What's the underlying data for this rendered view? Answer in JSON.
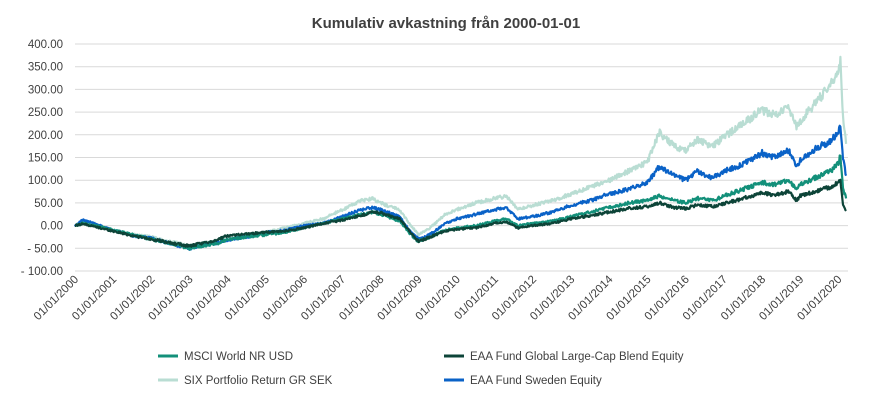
{
  "chart_data": {
    "type": "line",
    "title": "Kumulativ avkastning från 2000-01-01",
    "xlabel": "",
    "ylabel": "",
    "ylim": [
      -100,
      400
    ],
    "yticks": [
      {
        "value": 400,
        "label": "400.00"
      },
      {
        "value": 350,
        "label": "350.00"
      },
      {
        "value": 300,
        "label": "300.00"
      },
      {
        "value": 250,
        "label": "250.00"
      },
      {
        "value": 200,
        "label": "200.00"
      },
      {
        "value": 150,
        "label": "150.00"
      },
      {
        "value": 100,
        "label": "100.00"
      },
      {
        "value": 50,
        "label": "50.00"
      },
      {
        "value": 0,
        "label": "0.00"
      },
      {
        "value": -50,
        "label": "- 50.00"
      },
      {
        "value": -100,
        "label": "- 100.00"
      }
    ],
    "xlim": [
      2000,
      2020.25
    ],
    "xticks": [
      {
        "value": 2000,
        "label": "01/01/2000"
      },
      {
        "value": 2001,
        "label": "01/01/2001"
      },
      {
        "value": 2002,
        "label": "01/01/2002"
      },
      {
        "value": 2003,
        "label": "01/01/2003"
      },
      {
        "value": 2004,
        "label": "01/01/2004"
      },
      {
        "value": 2005,
        "label": "01/01/2005"
      },
      {
        "value": 2006,
        "label": "01/01/2006"
      },
      {
        "value": 2007,
        "label": "01/01/2007"
      },
      {
        "value": 2008,
        "label": "01/01/2008"
      },
      {
        "value": 2009,
        "label": "01/01/2009"
      },
      {
        "value": 2010,
        "label": "01/01/2010"
      },
      {
        "value": 2011,
        "label": "01/01/2011"
      },
      {
        "value": 2012,
        "label": "01/01/2012"
      },
      {
        "value": 2013,
        "label": "01/01/2013"
      },
      {
        "value": 2014,
        "label": "01/01/2014"
      },
      {
        "value": 2015,
        "label": "01/01/2015"
      },
      {
        "value": 2016,
        "label": "01/01/2016"
      },
      {
        "value": 2017,
        "label": "01/01/2017"
      },
      {
        "value": 2018,
        "label": "01/01/2018"
      },
      {
        "value": 2019,
        "label": "01/01/2019"
      },
      {
        "value": 2020,
        "label": "01/01/2020"
      }
    ],
    "grid": "horizontal",
    "legend_position": "bottom",
    "series": [
      {
        "name": "SIX Portfolio Return GR SEK",
        "color": "#b9ddd3",
        "points": [
          [
            2000,
            0
          ],
          [
            2000.2,
            10
          ],
          [
            2000.5,
            5
          ],
          [
            2000.8,
            -5
          ],
          [
            2001,
            -10
          ],
          [
            2001.5,
            -20
          ],
          [
            2002,
            -25
          ],
          [
            2002.5,
            -35
          ],
          [
            2003,
            -45
          ],
          [
            2003.3,
            -40
          ],
          [
            2003.7,
            -35
          ],
          [
            2004,
            -30
          ],
          [
            2004.5,
            -25
          ],
          [
            2005,
            -15
          ],
          [
            2005.5,
            -5
          ],
          [
            2006,
            5
          ],
          [
            2006.5,
            15
          ],
          [
            2007,
            35
          ],
          [
            2007.5,
            55
          ],
          [
            2007.8,
            60
          ],
          [
            2008,
            50
          ],
          [
            2008.5,
            35
          ],
          [
            2008.8,
            0
          ],
          [
            2009,
            -20
          ],
          [
            2009.3,
            -5
          ],
          [
            2009.7,
            25
          ],
          [
            2010,
            35
          ],
          [
            2010.5,
            50
          ],
          [
            2011,
            60
          ],
          [
            2011.3,
            65
          ],
          [
            2011.6,
            35
          ],
          [
            2012,
            45
          ],
          [
            2012.5,
            55
          ],
          [
            2013,
            70
          ],
          [
            2013.5,
            85
          ],
          [
            2014,
            100
          ],
          [
            2014.5,
            120
          ],
          [
            2015,
            140
          ],
          [
            2015.3,
            205
          ],
          [
            2015.7,
            175
          ],
          [
            2016,
            165
          ],
          [
            2016.3,
            190
          ],
          [
            2016.7,
            175
          ],
          [
            2017,
            195
          ],
          [
            2017.5,
            225
          ],
          [
            2018,
            255
          ],
          [
            2018.3,
            245
          ],
          [
            2018.7,
            260
          ],
          [
            2018.9,
            215
          ],
          [
            2019,
            230
          ],
          [
            2019.5,
            280
          ],
          [
            2019.8,
            310
          ],
          [
            2020,
            345
          ],
          [
            2020.05,
            360
          ],
          [
            2020.12,
            240
          ],
          [
            2020.2,
            180
          ]
        ]
      },
      {
        "name": "EAA Fund Sweden Equity",
        "color": "#0a62c7",
        "points": [
          [
            2000,
            0
          ],
          [
            2000.2,
            12
          ],
          [
            2000.5,
            5
          ],
          [
            2000.8,
            -5
          ],
          [
            2001,
            -10
          ],
          [
            2001.5,
            -22
          ],
          [
            2002,
            -28
          ],
          [
            2002.5,
            -40
          ],
          [
            2003,
            -50
          ],
          [
            2003.3,
            -45
          ],
          [
            2003.7,
            -38
          ],
          [
            2004,
            -32
          ],
          [
            2004.5,
            -25
          ],
          [
            2005,
            -15
          ],
          [
            2005.5,
            -10
          ],
          [
            2006,
            0
          ],
          [
            2006.5,
            5
          ],
          [
            2007,
            20
          ],
          [
            2007.5,
            35
          ],
          [
            2007.8,
            40
          ],
          [
            2008,
            35
          ],
          [
            2008.5,
            20
          ],
          [
            2008.8,
            -15
          ],
          [
            2009,
            -30
          ],
          [
            2009.3,
            -20
          ],
          [
            2009.7,
            5
          ],
          [
            2010,
            15
          ],
          [
            2010.5,
            25
          ],
          [
            2011,
            35
          ],
          [
            2011.3,
            40
          ],
          [
            2011.6,
            15
          ],
          [
            2012,
            20
          ],
          [
            2012.5,
            30
          ],
          [
            2013,
            45
          ],
          [
            2013.5,
            55
          ],
          [
            2014,
            70
          ],
          [
            2014.5,
            80
          ],
          [
            2015,
            95
          ],
          [
            2015.3,
            130
          ],
          [
            2015.7,
            110
          ],
          [
            2016,
            100
          ],
          [
            2016.3,
            120
          ],
          [
            2016.7,
            105
          ],
          [
            2017,
            120
          ],
          [
            2017.5,
            135
          ],
          [
            2018,
            160
          ],
          [
            2018.3,
            150
          ],
          [
            2018.7,
            165
          ],
          [
            2018.9,
            130
          ],
          [
            2019,
            145
          ],
          [
            2019.5,
            175
          ],
          [
            2019.8,
            185
          ],
          [
            2020,
            210
          ],
          [
            2020.05,
            222
          ],
          [
            2020.12,
            150
          ],
          [
            2020.2,
            110
          ]
        ]
      },
      {
        "name": "MSCI World NR USD",
        "color": "#13907a",
        "points": [
          [
            2000,
            0
          ],
          [
            2000.2,
            5
          ],
          [
            2000.5,
            0
          ],
          [
            2000.8,
            -5
          ],
          [
            2001,
            -10
          ],
          [
            2001.5,
            -20
          ],
          [
            2002,
            -30
          ],
          [
            2002.5,
            -40
          ],
          [
            2003,
            -50
          ],
          [
            2003.3,
            -45
          ],
          [
            2003.7,
            -40
          ],
          [
            2004,
            -30
          ],
          [
            2004.5,
            -25
          ],
          [
            2005,
            -20
          ],
          [
            2005.5,
            -15
          ],
          [
            2006,
            -5
          ],
          [
            2006.5,
            5
          ],
          [
            2007,
            15
          ],
          [
            2007.5,
            25
          ],
          [
            2007.8,
            30
          ],
          [
            2008,
            25
          ],
          [
            2008.5,
            10
          ],
          [
            2008.8,
            -20
          ],
          [
            2009,
            -35
          ],
          [
            2009.3,
            -25
          ],
          [
            2009.7,
            -10
          ],
          [
            2010,
            -5
          ],
          [
            2010.5,
            0
          ],
          [
            2011,
            10
          ],
          [
            2011.3,
            15
          ],
          [
            2011.6,
            0
          ],
          [
            2012,
            5
          ],
          [
            2012.5,
            10
          ],
          [
            2013,
            20
          ],
          [
            2013.5,
            30
          ],
          [
            2014,
            40
          ],
          [
            2014.5,
            50
          ],
          [
            2015,
            55
          ],
          [
            2015.3,
            65
          ],
          [
            2015.7,
            55
          ],
          [
            2016,
            50
          ],
          [
            2016.3,
            60
          ],
          [
            2016.7,
            55
          ],
          [
            2017,
            65
          ],
          [
            2017.5,
            80
          ],
          [
            2018,
            95
          ],
          [
            2018.3,
            90
          ],
          [
            2018.7,
            100
          ],
          [
            2018.9,
            80
          ],
          [
            2019,
            90
          ],
          [
            2019.5,
            110
          ],
          [
            2019.8,
            120
          ],
          [
            2020,
            140
          ],
          [
            2020.05,
            152
          ],
          [
            2020.12,
            80
          ],
          [
            2020.2,
            60
          ]
        ]
      },
      {
        "name": "EAA Fund Global Large-Cap Blend Equity",
        "color": "#0d4438",
        "points": [
          [
            2000,
            0
          ],
          [
            2000.2,
            4
          ],
          [
            2000.5,
            -2
          ],
          [
            2000.8,
            -8
          ],
          [
            2001,
            -12
          ],
          [
            2001.5,
            -22
          ],
          [
            2002,
            -30
          ],
          [
            2002.5,
            -38
          ],
          [
            2003,
            -45
          ],
          [
            2003.3,
            -40
          ],
          [
            2003.7,
            -32
          ],
          [
            2004,
            -22
          ],
          [
            2004.5,
            -18
          ],
          [
            2005,
            -15
          ],
          [
            2005.5,
            -12
          ],
          [
            2006,
            -5
          ],
          [
            2006.5,
            5
          ],
          [
            2007,
            12
          ],
          [
            2007.5,
            22
          ],
          [
            2007.8,
            30
          ],
          [
            2008,
            28
          ],
          [
            2008.5,
            15
          ],
          [
            2008.8,
            -15
          ],
          [
            2009,
            -35
          ],
          [
            2009.3,
            -25
          ],
          [
            2009.7,
            -12
          ],
          [
            2010,
            -8
          ],
          [
            2010.5,
            -5
          ],
          [
            2011,
            5
          ],
          [
            2011.3,
            8
          ],
          [
            2011.6,
            -5
          ],
          [
            2012,
            0
          ],
          [
            2012.5,
            5
          ],
          [
            2013,
            15
          ],
          [
            2013.5,
            22
          ],
          [
            2014,
            30
          ],
          [
            2014.5,
            38
          ],
          [
            2015,
            42
          ],
          [
            2015.3,
            50
          ],
          [
            2015.7,
            40
          ],
          [
            2016,
            38
          ],
          [
            2016.3,
            45
          ],
          [
            2016.7,
            42
          ],
          [
            2017,
            48
          ],
          [
            2017.5,
            60
          ],
          [
            2018,
            72
          ],
          [
            2018.3,
            68
          ],
          [
            2018.7,
            75
          ],
          [
            2018.9,
            55
          ],
          [
            2019,
            65
          ],
          [
            2019.5,
            78
          ],
          [
            2019.8,
            85
          ],
          [
            2020,
            95
          ],
          [
            2020.05,
            100
          ],
          [
            2020.12,
            45
          ],
          [
            2020.2,
            35
          ]
        ]
      }
    ],
    "legend": [
      {
        "name": "MSCI World NR USD",
        "color": "#13907a"
      },
      {
        "name": "EAA Fund Global Large-Cap Blend Equity",
        "color": "#0d4438"
      },
      {
        "name": "SIX Portfolio Return GR SEK",
        "color": "#b9ddd3"
      },
      {
        "name": "EAA Fund Sweden Equity",
        "color": "#0a62c7"
      }
    ]
  }
}
